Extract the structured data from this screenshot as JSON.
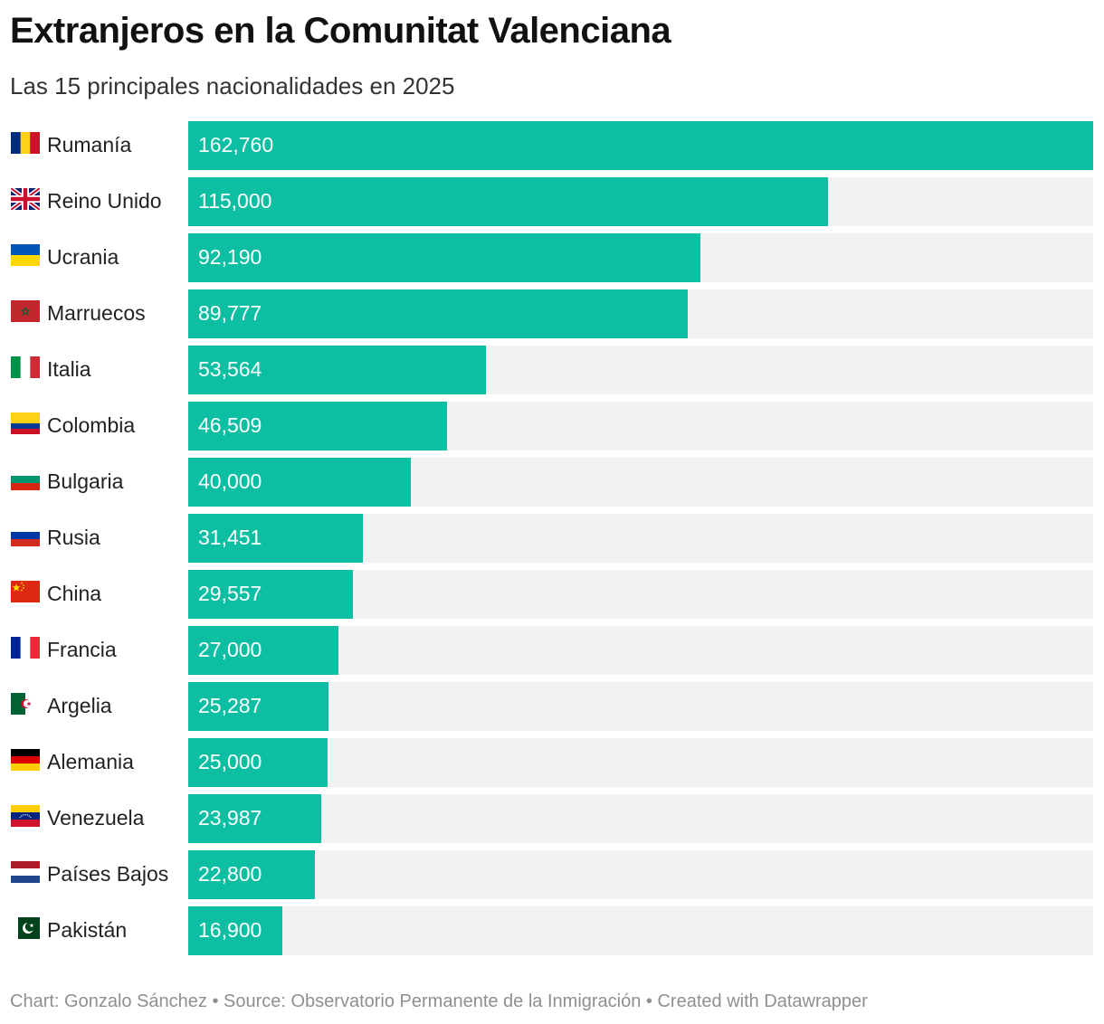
{
  "title": "Extranjeros en la Comunitat Valenciana",
  "subtitle": "Las 15 principales nacionalidades en 2025",
  "footer": "Chart: Gonzalo Sánchez • Source: Observatorio Permanente de la Inmigración • Created with Datawrapper",
  "colors": {
    "bar": "#0cbfa3",
    "track": "#f2f2f2",
    "value_text": "#ffffff"
  },
  "chart_data": {
    "type": "bar",
    "orientation": "horizontal",
    "categories": [
      "Rumanía",
      "Reino Unido",
      "Ucrania",
      "Marruecos",
      "Italia",
      "Colombia",
      "Bulgaria",
      "Rusia",
      "China",
      "Francia",
      "Argelia",
      "Alemania",
      "Venezuela",
      "Países Bajos",
      "Pakistán"
    ],
    "values": [
      162760,
      115000,
      92190,
      89777,
      53564,
      46509,
      40000,
      31451,
      29557,
      27000,
      25287,
      25000,
      23987,
      22800,
      16900
    ],
    "value_labels": [
      "162,760",
      "115,000",
      "92,190",
      "89,777",
      "53,564",
      "46,509",
      "40,000",
      "31,451",
      "29,557",
      "27,000",
      "25,287",
      "25,000",
      "23,987",
      "22,800",
      "16,900"
    ],
    "flags": [
      "romania-flag-icon",
      "united-kingdom-flag-icon",
      "ukraine-flag-icon",
      "morocco-flag-icon",
      "italy-flag-icon",
      "colombia-flag-icon",
      "bulgaria-flag-icon",
      "russia-flag-icon",
      "china-flag-icon",
      "france-flag-icon",
      "algeria-flag-icon",
      "germany-flag-icon",
      "venezuela-flag-icon",
      "netherlands-flag-icon",
      "pakistan-flag-icon"
    ],
    "xlim": [
      0,
      162760
    ],
    "grid": false,
    "legend": "none"
  }
}
